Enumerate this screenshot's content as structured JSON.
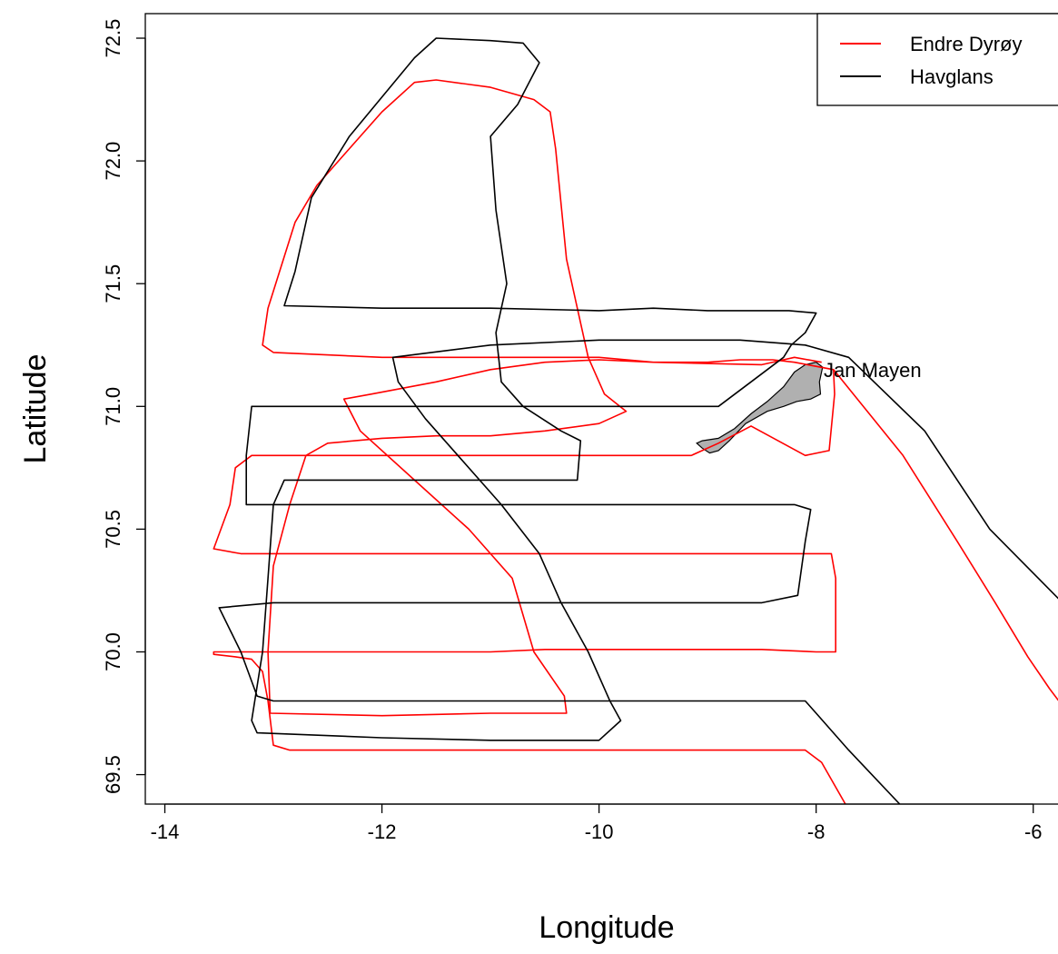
{
  "chart_data": {
    "type": "map",
    "xlabel": "Longitude",
    "ylabel": "Latitude",
    "xlim": [
      -14.18,
      -5.73
    ],
    "ylim": [
      69.38,
      72.6
    ],
    "x_ticks": [
      -14,
      -12,
      -10,
      -8,
      -6
    ],
    "y_ticks": [
      69.5,
      70.0,
      70.5,
      71.0,
      71.5,
      72.0,
      72.5
    ],
    "x_tick_labels": [
      "-14",
      "-12",
      "-10",
      "-8",
      "-6"
    ],
    "y_tick_labels": [
      "69.5",
      "70.0",
      "70.5",
      "71.0",
      "71.5",
      "72.0",
      "72.5"
    ],
    "legend": {
      "position": "top-right",
      "entries": [
        {
          "name": "Endre Dyrøy",
          "color": "#ff0000"
        },
        {
          "name": "Havglans",
          "color": "#000000"
        }
      ]
    },
    "series": [
      {
        "name": "Endre Dyrøy",
        "color": "#ff0000",
        "points": [
          [
            -7.73,
            69.38
          ],
          [
            -7.95,
            69.55
          ],
          [
            -8.1,
            69.6
          ],
          [
            -10.0,
            69.6
          ],
          [
            -11.5,
            69.6
          ],
          [
            -12.0,
            69.6
          ],
          [
            -12.85,
            69.6
          ],
          [
            -13.0,
            69.62
          ],
          [
            -13.05,
            69.8
          ],
          [
            -13.1,
            69.92
          ],
          [
            -13.2,
            69.97
          ],
          [
            -13.35,
            69.98
          ],
          [
            -13.55,
            69.99
          ],
          [
            -13.55,
            70.0
          ],
          [
            -12.0,
            70.0
          ],
          [
            -11.0,
            70.0
          ],
          [
            -10.5,
            70.01
          ],
          [
            -9.5,
            70.01
          ],
          [
            -8.5,
            70.01
          ],
          [
            -8.0,
            70.0
          ],
          [
            -7.82,
            70.0
          ],
          [
            -7.82,
            70.3
          ],
          [
            -7.86,
            70.4
          ],
          [
            -10.0,
            70.4
          ],
          [
            -12.0,
            70.4
          ],
          [
            -13.3,
            70.4
          ],
          [
            -13.55,
            70.42
          ],
          [
            -13.4,
            70.6
          ],
          [
            -13.35,
            70.75
          ],
          [
            -13.2,
            70.8
          ],
          [
            -11.0,
            70.8
          ],
          [
            -9.15,
            70.8
          ],
          [
            -8.9,
            70.85
          ],
          [
            -8.6,
            70.92
          ],
          [
            -8.1,
            70.8
          ],
          [
            -7.88,
            70.82
          ],
          [
            -7.83,
            71.05
          ],
          [
            -7.84,
            71.15
          ],
          [
            -7.2,
            70.8
          ],
          [
            -6.7,
            70.45
          ],
          [
            -6.35,
            70.2
          ],
          [
            -6.05,
            69.98
          ],
          [
            -5.85,
            69.85
          ],
          [
            -5.73,
            69.78
          ]
        ]
      },
      {
        "name": "Endre Dyrøy",
        "color": "#ff0000",
        "points": [
          [
            -7.84,
            71.15
          ],
          [
            -8.2,
            71.18
          ],
          [
            -8.4,
            71.19
          ],
          [
            -8.7,
            71.19
          ],
          [
            -9.0,
            71.18
          ],
          [
            -9.5,
            71.18
          ],
          [
            -10.0,
            71.2
          ],
          [
            -10.5,
            71.2
          ],
          [
            -11.0,
            71.2
          ],
          [
            -12.0,
            71.2
          ],
          [
            -13.0,
            71.22
          ],
          [
            -13.1,
            71.25
          ],
          [
            -13.05,
            71.4
          ],
          [
            -12.8,
            71.75
          ],
          [
            -12.6,
            71.9
          ],
          [
            -12.0,
            72.2
          ],
          [
            -11.7,
            72.32
          ],
          [
            -11.5,
            72.33
          ],
          [
            -11.0,
            72.3
          ],
          [
            -10.6,
            72.25
          ],
          [
            -10.45,
            72.2
          ],
          [
            -10.4,
            72.05
          ],
          [
            -10.3,
            71.6
          ],
          [
            -10.2,
            71.4
          ],
          [
            -10.1,
            71.2
          ],
          [
            -9.95,
            71.05
          ],
          [
            -9.75,
            70.98
          ],
          [
            -10.0,
            70.93
          ],
          [
            -10.5,
            70.9
          ],
          [
            -11.0,
            70.88
          ],
          [
            -11.5,
            70.88
          ],
          [
            -12.0,
            70.87
          ],
          [
            -12.5,
            70.85
          ],
          [
            -12.7,
            70.8
          ],
          [
            -12.85,
            70.6
          ],
          [
            -13.0,
            70.35
          ],
          [
            -13.05,
            70.0
          ],
          [
            -13.03,
            69.75
          ],
          [
            -12.0,
            69.74
          ],
          [
            -11.0,
            69.75
          ],
          [
            -10.3,
            69.75
          ],
          [
            -10.32,
            69.82
          ],
          [
            -10.6,
            70.0
          ],
          [
            -10.8,
            70.3
          ],
          [
            -11.2,
            70.5
          ],
          [
            -11.7,
            70.7
          ],
          [
            -12.2,
            70.9
          ],
          [
            -12.35,
            71.03
          ],
          [
            -12.1,
            71.05
          ],
          [
            -11.5,
            71.1
          ],
          [
            -11.0,
            71.15
          ],
          [
            -10.5,
            71.18
          ],
          [
            -10.0,
            71.19
          ],
          [
            -9.5,
            71.18
          ],
          [
            -8.5,
            71.17
          ],
          [
            -8.2,
            71.2
          ],
          [
            -7.95,
            71.18
          ]
        ]
      },
      {
        "name": "Havglans",
        "color": "#000000",
        "points": [
          [
            -7.23,
            69.38
          ],
          [
            -7.7,
            69.6
          ],
          [
            -8.0,
            69.75
          ],
          [
            -8.1,
            69.8
          ],
          [
            -10.0,
            69.8
          ],
          [
            -11.0,
            69.8
          ],
          [
            -12.0,
            69.8
          ],
          [
            -13.0,
            69.8
          ],
          [
            -13.15,
            69.82
          ],
          [
            -13.3,
            70.0
          ],
          [
            -13.5,
            70.18
          ],
          [
            -13.0,
            70.2
          ],
          [
            -12.0,
            70.2
          ],
          [
            -10.0,
            70.2
          ],
          [
            -8.5,
            70.2
          ],
          [
            -8.17,
            70.23
          ],
          [
            -8.1,
            70.45
          ],
          [
            -8.05,
            70.58
          ],
          [
            -8.2,
            70.6
          ],
          [
            -10.0,
            70.6
          ],
          [
            -11.5,
            70.6
          ],
          [
            -12.0,
            70.6
          ],
          [
            -13.25,
            70.6
          ],
          [
            -13.25,
            70.8
          ],
          [
            -13.2,
            71.0
          ],
          [
            -12.0,
            71.0
          ],
          [
            -11.0,
            71.0
          ],
          [
            -10.0,
            71.0
          ],
          [
            -9.5,
            71.0
          ],
          [
            -8.9,
            71.0
          ],
          [
            -8.6,
            71.1
          ],
          [
            -8.3,
            71.2
          ],
          [
            -8.23,
            71.25
          ],
          [
            -8.1,
            71.3
          ],
          [
            -8.0,
            71.38
          ],
          [
            -8.25,
            71.39
          ],
          [
            -9.0,
            71.39
          ],
          [
            -9.5,
            71.4
          ],
          [
            -10.0,
            71.39
          ],
          [
            -11.0,
            71.4
          ],
          [
            -12.0,
            71.4
          ],
          [
            -12.9,
            71.41
          ],
          [
            -12.8,
            71.55
          ],
          [
            -12.65,
            71.85
          ],
          [
            -12.3,
            72.1
          ],
          [
            -11.7,
            72.42
          ],
          [
            -11.5,
            72.5
          ],
          [
            -11.0,
            72.49
          ],
          [
            -10.7,
            72.48
          ],
          [
            -10.55,
            72.4
          ],
          [
            -10.75,
            72.23
          ],
          [
            -11.0,
            72.1
          ],
          [
            -10.95,
            71.8
          ],
          [
            -10.85,
            71.5
          ],
          [
            -10.95,
            71.3
          ],
          [
            -10.9,
            71.1
          ],
          [
            -10.7,
            71.0
          ],
          [
            -10.35,
            70.9
          ],
          [
            -10.17,
            70.86
          ],
          [
            -10.2,
            70.7
          ],
          [
            -11.0,
            70.7
          ],
          [
            -12.0,
            70.7
          ],
          [
            -12.9,
            70.7
          ],
          [
            -13.0,
            70.6
          ],
          [
            -13.05,
            70.3
          ],
          [
            -13.1,
            70.0
          ],
          [
            -13.2,
            69.72
          ],
          [
            -13.15,
            69.67
          ],
          [
            -12.0,
            69.65
          ],
          [
            -11.0,
            69.64
          ],
          [
            -10.0,
            69.64
          ],
          [
            -9.8,
            69.72
          ],
          [
            -9.9,
            69.8
          ],
          [
            -10.1,
            70.0
          ],
          [
            -10.35,
            70.2
          ],
          [
            -10.55,
            70.4
          ],
          [
            -10.9,
            70.6
          ],
          [
            -11.3,
            70.8
          ],
          [
            -11.6,
            70.95
          ],
          [
            -11.85,
            71.1
          ],
          [
            -11.9,
            71.2
          ],
          [
            -11.0,
            71.25
          ],
          [
            -10.0,
            71.27
          ],
          [
            -8.7,
            71.27
          ],
          [
            -8.1,
            71.25
          ],
          [
            -7.7,
            71.2
          ],
          [
            -7.0,
            70.9
          ],
          [
            -6.4,
            70.5
          ],
          [
            -5.73,
            70.2
          ]
        ]
      }
    ],
    "landmass": {
      "name": "Jan Mayen",
      "fill": "#b0b0b0",
      "outline": [
        [
          -9.1,
          70.85
        ],
        [
          -9.05,
          70.83
        ],
        [
          -8.98,
          70.81
        ],
        [
          -8.9,
          70.82
        ],
        [
          -8.8,
          70.86
        ],
        [
          -8.65,
          70.93
        ],
        [
          -8.45,
          70.98
        ],
        [
          -8.3,
          71.0
        ],
        [
          -8.18,
          71.02
        ],
        [
          -8.05,
          71.03
        ],
        [
          -7.96,
          71.05
        ],
        [
          -7.97,
          71.1
        ],
        [
          -7.94,
          71.16
        ],
        [
          -8.0,
          71.18
        ],
        [
          -8.1,
          71.17
        ],
        [
          -8.2,
          71.14
        ],
        [
          -8.3,
          71.08
        ],
        [
          -8.45,
          71.02
        ],
        [
          -8.6,
          70.97
        ],
        [
          -8.75,
          70.91
        ],
        [
          -8.9,
          70.87
        ],
        [
          -9.05,
          70.86
        ],
        [
          -9.1,
          70.85
        ]
      ]
    },
    "annotations": [
      {
        "text": "Jan Mayen",
        "x": -7.93,
        "y": 71.15
      }
    ]
  }
}
